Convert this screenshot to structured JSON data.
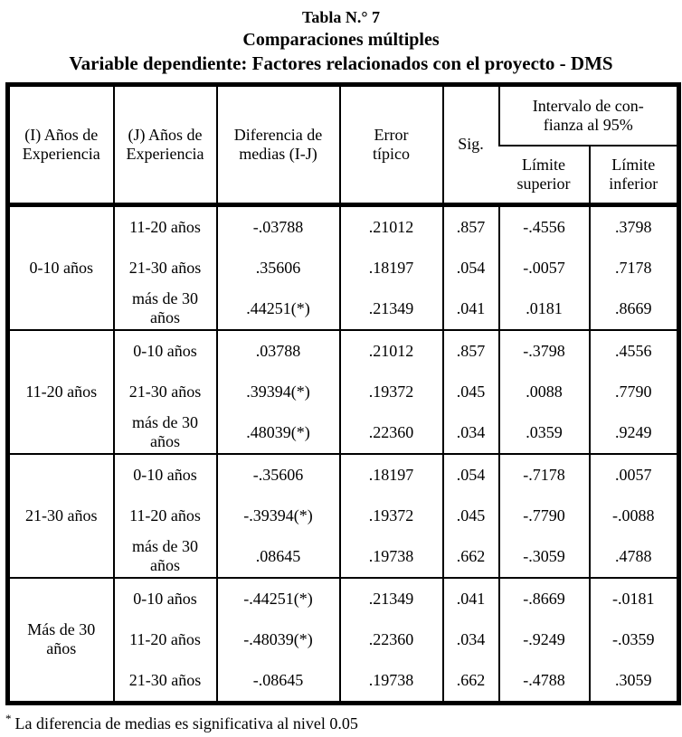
{
  "title": {
    "line1": "Tabla N.° 7",
    "line2": "Comparaciones múltiples",
    "line3": "Variable dependiente: Factores relacionados con el proyecto - DMS"
  },
  "table": {
    "header": {
      "i_col": "(I) Años de Experiencia",
      "j_col": "(J) Años de Experiencia",
      "diff_col": "Diferencia de medias (I-J)",
      "error_col": "Error típico",
      "sig_col": "Sig.",
      "ci_col_line1": "Intervalo de con-",
      "ci_col_line2": "fianza al 95%",
      "ci_upper": "Límite superior",
      "ci_lower": "Límite inferior"
    },
    "groups": [
      {
        "i_label": "0-10 años",
        "rows": [
          {
            "j": "11-20 años",
            "diff": "-.03788",
            "error": ".21012",
            "sig": ".857",
            "upper": "-.4556",
            "lower": ".3798"
          },
          {
            "j": "21-30 años",
            "diff": ".35606",
            "error": ".18197",
            "sig": ".054",
            "upper": "-.0057",
            "lower": ".7178"
          },
          {
            "j": "más de 30 años",
            "diff": ".44251(*)",
            "error": ".21349",
            "sig": ".041",
            "upper": ".0181",
            "lower": ".8669"
          }
        ]
      },
      {
        "i_label": "11-20 años",
        "rows": [
          {
            "j": "0-10 años",
            "diff": ".03788",
            "error": ".21012",
            "sig": ".857",
            "upper": "-.3798",
            "lower": ".4556"
          },
          {
            "j": "21-30 años",
            "diff": ".39394(*)",
            "error": ".19372",
            "sig": ".045",
            "upper": ".0088",
            "lower": ".7790"
          },
          {
            "j": "más de 30 años",
            "diff": ".48039(*)",
            "error": ".22360",
            "sig": ".034",
            "upper": ".0359",
            "lower": ".9249"
          }
        ]
      },
      {
        "i_label": "21-30 años",
        "rows": [
          {
            "j": "0-10 años",
            "diff": "-.35606",
            "error": ".18197",
            "sig": ".054",
            "upper": "-.7178",
            "lower": ".0057"
          },
          {
            "j": "11-20 años",
            "diff": "-.39394(*)",
            "error": ".19372",
            "sig": ".045",
            "upper": "-.7790",
            "lower": "-.0088"
          },
          {
            "j": "más de 30 años",
            "diff": ".08645",
            "error": ".19738",
            "sig": ".662",
            "upper": "-.3059",
            "lower": ".4788"
          }
        ]
      },
      {
        "i_label": "Más de 30 años",
        "rows": [
          {
            "j": "0-10 años",
            "diff": "-.44251(*)",
            "error": ".21349",
            "sig": ".041",
            "upper": "-.8669",
            "lower": "-.0181"
          },
          {
            "j": "11-20 años",
            "diff": "-.48039(*)",
            "error": ".22360",
            "sig": ".034",
            "upper": "-.9249",
            "lower": "-.0359"
          },
          {
            "j": "21-30 años",
            "diff": "-.08645",
            "error": ".19738",
            "sig": ".662",
            "upper": "-.4788",
            "lower": ".3059"
          }
        ]
      }
    ]
  },
  "footnote": {
    "marker": "*",
    "text": "La diferencia de medias es significativa al nivel 0.05"
  }
}
